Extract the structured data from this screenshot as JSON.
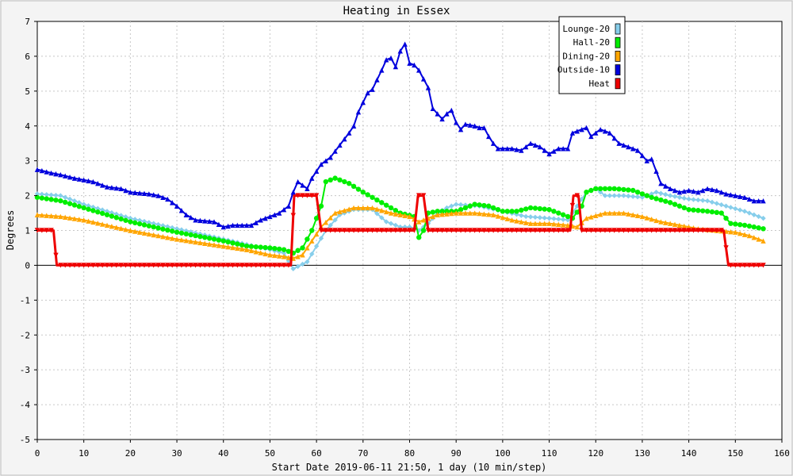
{
  "chart_data": {
    "type": "line",
    "title": "Heating in Essex",
    "xlabel": "Start Date 2019-06-11 21:50, 1 day (10 min/step)",
    "ylabel": "Degrees",
    "xlim": [
      0,
      160
    ],
    "ylim": [
      -5,
      7
    ],
    "x_ticks": [
      0,
      10,
      20,
      30,
      40,
      50,
      60,
      70,
      80,
      90,
      100,
      110,
      120,
      130,
      140,
      150,
      160
    ],
    "y_ticks": [
      -5,
      -4,
      -3,
      -2,
      -1,
      0,
      1,
      2,
      3,
      4,
      5,
      6,
      7
    ],
    "grid": true,
    "legend_position": "top-right",
    "series": [
      {
        "name": "Lounge-20",
        "color": "#87ceeb",
        "marker": "diamond",
        "points": [
          [
            0,
            2.05
          ],
          [
            5,
            2.0
          ],
          [
            10,
            1.75
          ],
          [
            20,
            1.35
          ],
          [
            30,
            1.05
          ],
          [
            40,
            0.75
          ],
          [
            45,
            0.6
          ],
          [
            50,
            0.45
          ],
          [
            53,
            0.35
          ],
          [
            55,
            -0.1
          ],
          [
            58,
            0.1
          ],
          [
            60,
            0.55
          ],
          [
            62,
            1.0
          ],
          [
            65,
            1.45
          ],
          [
            68,
            1.6
          ],
          [
            72,
            1.6
          ],
          [
            75,
            1.25
          ],
          [
            78,
            1.1
          ],
          [
            80,
            1.1
          ],
          [
            82,
            1.0
          ],
          [
            84,
            1.2
          ],
          [
            86,
            1.5
          ],
          [
            88,
            1.65
          ],
          [
            90,
            1.75
          ],
          [
            95,
            1.7
          ],
          [
            100,
            1.55
          ],
          [
            105,
            1.4
          ],
          [
            110,
            1.35
          ],
          [
            114,
            1.3
          ],
          [
            116,
            1.7
          ],
          [
            118,
            2.1
          ],
          [
            120,
            2.2
          ],
          [
            122,
            2.0
          ],
          [
            126,
            2.0
          ],
          [
            130,
            1.95
          ],
          [
            133,
            2.1
          ],
          [
            136,
            2.0
          ],
          [
            140,
            1.9
          ],
          [
            144,
            1.85
          ],
          [
            148,
            1.7
          ],
          [
            152,
            1.55
          ],
          [
            156,
            1.35
          ]
        ]
      },
      {
        "name": "Hall-20",
        "color": "#00ee00",
        "marker": "circle",
        "points": [
          [
            0,
            1.95
          ],
          [
            5,
            1.85
          ],
          [
            10,
            1.65
          ],
          [
            20,
            1.25
          ],
          [
            30,
            0.95
          ],
          [
            40,
            0.7
          ],
          [
            45,
            0.55
          ],
          [
            50,
            0.5
          ],
          [
            53,
            0.45
          ],
          [
            55,
            0.35
          ],
          [
            57,
            0.5
          ],
          [
            59,
            1.0
          ],
          [
            61,
            1.7
          ],
          [
            62,
            2.4
          ],
          [
            64,
            2.5
          ],
          [
            67,
            2.35
          ],
          [
            70,
            2.1
          ],
          [
            74,
            1.8
          ],
          [
            78,
            1.5
          ],
          [
            81,
            1.4
          ],
          [
            82,
            0.8
          ],
          [
            83,
            1.0
          ],
          [
            84,
            1.5
          ],
          [
            86,
            1.55
          ],
          [
            90,
            1.55
          ],
          [
            94,
            1.75
          ],
          [
            97,
            1.7
          ],
          [
            100,
            1.55
          ],
          [
            103,
            1.55
          ],
          [
            106,
            1.65
          ],
          [
            110,
            1.6
          ],
          [
            113,
            1.45
          ],
          [
            115,
            1.35
          ],
          [
            117,
            1.7
          ],
          [
            118,
            2.1
          ],
          [
            120,
            2.2
          ],
          [
            124,
            2.2
          ],
          [
            128,
            2.15
          ],
          [
            132,
            1.95
          ],
          [
            136,
            1.8
          ],
          [
            140,
            1.6
          ],
          [
            144,
            1.55
          ],
          [
            147,
            1.5
          ],
          [
            149,
            1.2
          ],
          [
            152,
            1.15
          ],
          [
            156,
            1.05
          ]
        ]
      },
      {
        "name": "Dining-20",
        "color": "#ffa500",
        "marker": "triangle-up",
        "points": [
          [
            0,
            1.45
          ],
          [
            5,
            1.4
          ],
          [
            10,
            1.3
          ],
          [
            20,
            1.0
          ],
          [
            30,
            0.75
          ],
          [
            40,
            0.55
          ],
          [
            45,
            0.45
          ],
          [
            50,
            0.3
          ],
          [
            53,
            0.25
          ],
          [
            55,
            0.2
          ],
          [
            57,
            0.3
          ],
          [
            59,
            0.7
          ],
          [
            61,
            1.1
          ],
          [
            64,
            1.5
          ],
          [
            68,
            1.65
          ],
          [
            72,
            1.65
          ],
          [
            76,
            1.5
          ],
          [
            80,
            1.4
          ],
          [
            82,
            1.25
          ],
          [
            84,
            1.35
          ],
          [
            86,
            1.45
          ],
          [
            90,
            1.5
          ],
          [
            94,
            1.5
          ],
          [
            98,
            1.45
          ],
          [
            102,
            1.3
          ],
          [
            106,
            1.2
          ],
          [
            110,
            1.2
          ],
          [
            114,
            1.15
          ],
          [
            116,
            1.1
          ],
          [
            118,
            1.35
          ],
          [
            122,
            1.5
          ],
          [
            126,
            1.5
          ],
          [
            130,
            1.4
          ],
          [
            134,
            1.25
          ],
          [
            138,
            1.15
          ],
          [
            142,
            1.05
          ],
          [
            146,
            1.0
          ],
          [
            150,
            0.95
          ],
          [
            153,
            0.85
          ],
          [
            156,
            0.7
          ]
        ]
      },
      {
        "name": "Outside-10",
        "color": "#0000dd",
        "marker": "triangle-up",
        "points": [
          [
            0,
            2.75
          ],
          [
            3,
            2.65
          ],
          [
            5,
            2.6
          ],
          [
            8,
            2.5
          ],
          [
            12,
            2.4
          ],
          [
            15,
            2.25
          ],
          [
            18,
            2.2
          ],
          [
            20,
            2.1
          ],
          [
            24,
            2.05
          ],
          [
            26,
            2.0
          ],
          [
            28,
            1.9
          ],
          [
            30,
            1.7
          ],
          [
            32,
            1.45
          ],
          [
            34,
            1.3
          ],
          [
            38,
            1.25
          ],
          [
            40,
            1.1
          ],
          [
            42,
            1.15
          ],
          [
            46,
            1.15
          ],
          [
            48,
            1.3
          ],
          [
            50,
            1.4
          ],
          [
            52,
            1.5
          ],
          [
            54,
            1.7
          ],
          [
            55,
            2.1
          ],
          [
            56,
            2.4
          ],
          [
            58,
            2.2
          ],
          [
            59,
            2.5
          ],
          [
            61,
            2.9
          ],
          [
            63,
            3.1
          ],
          [
            65,
            3.45
          ],
          [
            67,
            3.8
          ],
          [
            68,
            4.0
          ],
          [
            69,
            4.4
          ],
          [
            71,
            4.95
          ],
          [
            72,
            5.05
          ],
          [
            74,
            5.6
          ],
          [
            75,
            5.9
          ],
          [
            76,
            5.95
          ],
          [
            77,
            5.7
          ],
          [
            78,
            6.15
          ],
          [
            79,
            6.35
          ],
          [
            80,
            5.8
          ],
          [
            81,
            5.75
          ],
          [
            82,
            5.6
          ],
          [
            84,
            5.1
          ],
          [
            85,
            4.5
          ],
          [
            87,
            4.2
          ],
          [
            88,
            4.35
          ],
          [
            89,
            4.45
          ],
          [
            90,
            4.1
          ],
          [
            91,
            3.9
          ],
          [
            92,
            4.05
          ],
          [
            94,
            4.0
          ],
          [
            95,
            3.95
          ],
          [
            96,
            3.95
          ],
          [
            97,
            3.7
          ],
          [
            98,
            3.5
          ],
          [
            99,
            3.35
          ],
          [
            100,
            3.35
          ],
          [
            102,
            3.35
          ],
          [
            104,
            3.3
          ],
          [
            106,
            3.5
          ],
          [
            108,
            3.4
          ],
          [
            110,
            3.2
          ],
          [
            112,
            3.35
          ],
          [
            114,
            3.35
          ],
          [
            115,
            3.8
          ],
          [
            117,
            3.9
          ],
          [
            118,
            3.95
          ],
          [
            119,
            3.7
          ],
          [
            121,
            3.9
          ],
          [
            123,
            3.8
          ],
          [
            125,
            3.5
          ],
          [
            127,
            3.4
          ],
          [
            129,
            3.3
          ],
          [
            131,
            3.0
          ],
          [
            132,
            3.05
          ],
          [
            134,
            2.35
          ],
          [
            136,
            2.2
          ],
          [
            138,
            2.1
          ],
          [
            140,
            2.15
          ],
          [
            142,
            2.1
          ],
          [
            144,
            2.2
          ],
          [
            146,
            2.15
          ],
          [
            148,
            2.05
          ],
          [
            150,
            2.0
          ],
          [
            152,
            1.95
          ],
          [
            154,
            1.85
          ],
          [
            156,
            1.85
          ]
        ]
      },
      {
        "name": "Heat",
        "color": "#ee0000",
        "marker": "triangle-down",
        "points": [
          [
            0,
            1
          ],
          [
            3.5,
            1
          ],
          [
            4.2,
            0
          ],
          [
            54.5,
            0
          ],
          [
            55.2,
            2
          ],
          [
            60,
            2
          ],
          [
            61,
            1
          ],
          [
            81,
            1
          ],
          [
            81.8,
            2
          ],
          [
            83,
            2
          ],
          [
            84,
            1
          ],
          [
            114.5,
            1
          ],
          [
            115.2,
            2
          ],
          [
            116.3,
            2
          ],
          [
            117,
            1
          ],
          [
            147.5,
            1
          ],
          [
            148.5,
            0
          ],
          [
            156,
            0
          ]
        ]
      }
    ]
  }
}
